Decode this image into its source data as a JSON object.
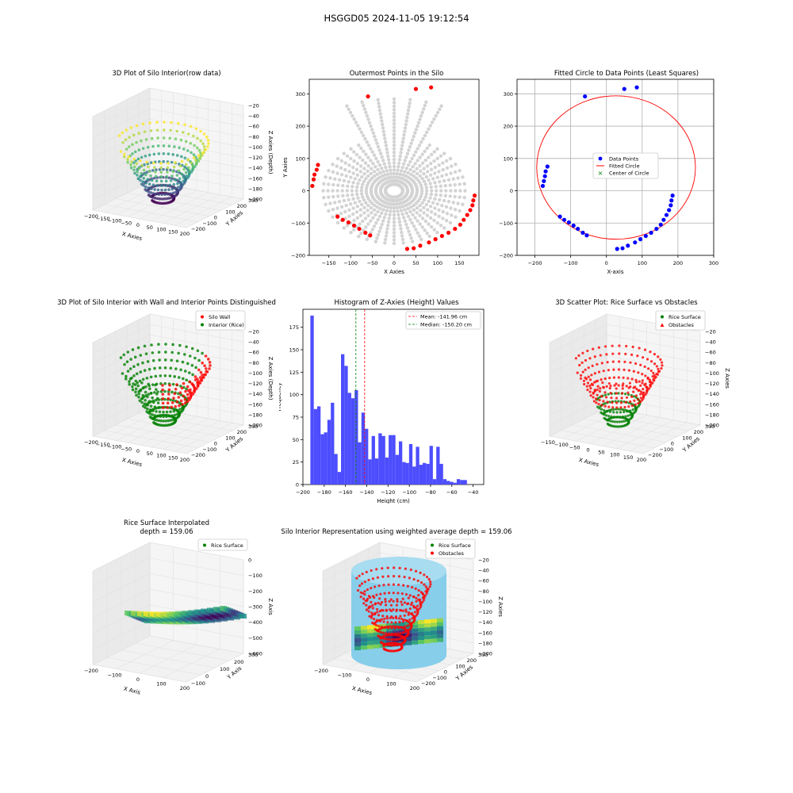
{
  "suptitle": "HSGGD05 2024-11-05 19:12:54",
  "colors": {
    "wall": "#ff0000",
    "rice": "#008000",
    "grey": "#d3d3d3",
    "blue": "#0000ff",
    "hist": "#4d4dff",
    "silo": "#87ceeb"
  },
  "chart_data": [
    {
      "type": "scatter",
      "title": "3D Plot of Silo Interior(row data)",
      "xlabel": "X Axies",
      "ylabel": "Y Axies",
      "zlabel": "Z Axies (Depth)",
      "xticks": [
        "−200",
        "−150",
        "−100",
        "−50",
        "0",
        "50",
        "100",
        "150",
        "200"
      ],
      "yticks": [
        "300",
        "200",
        "100",
        "0",
        "−100",
        "−200"
      ],
      "zticks": [
        "−20",
        "−40",
        "−60",
        "−80",
        "−100",
        "−120",
        "−140",
        "−160",
        "−180",
        "−200"
      ],
      "colormap": "viridis"
    },
    {
      "type": "scatter",
      "title": "Outermost Points in the Silo",
      "xlabel": "X Axies",
      "ylabel": "Y Axies",
      "xlim": [
        -195,
        195
      ],
      "ylim": [
        -200,
        345
      ],
      "xticks": [
        -150,
        -100,
        -50,
        0,
        50,
        100,
        150
      ],
      "yticks": [
        -200,
        -100,
        0,
        100,
        200,
        300
      ],
      "outer_points": [
        [
          -60,
          292
        ],
        [
          50,
          315
        ],
        [
          85,
          320
        ],
        [
          -175,
          80
        ],
        [
          -178,
          65
        ],
        [
          -183,
          50
        ],
        [
          -185,
          35
        ],
        [
          -188,
          15
        ],
        [
          -130,
          -80
        ],
        [
          -118,
          -90
        ],
        [
          -105,
          -98
        ],
        [
          -92,
          -108
        ],
        [
          -80,
          -118
        ],
        [
          -66,
          -130
        ],
        [
          -55,
          -138
        ],
        [
          30,
          -180
        ],
        [
          45,
          -178
        ],
        [
          60,
          -170
        ],
        [
          80,
          -160
        ],
        [
          95,
          -150
        ],
        [
          110,
          -140
        ],
        [
          125,
          -130
        ],
        [
          140,
          -118
        ],
        [
          152,
          -105
        ],
        [
          160,
          -90
        ],
        [
          168,
          -75
        ],
        [
          175,
          -60
        ],
        [
          180,
          -45
        ],
        [
          182,
          -30
        ],
        [
          185,
          -15
        ]
      ]
    },
    {
      "type": "scatter",
      "title": "Fitted Circle to Data Points (Least Squares)",
      "xlabel": "X-axis",
      "ylabel": "Y-axis",
      "xlim": [
        -250,
        300
      ],
      "ylim": [
        -200,
        345
      ],
      "xticks": [
        -200,
        -100,
        0,
        100,
        200,
        300
      ],
      "yticks": [
        -200,
        -100,
        0,
        100,
        200,
        300
      ],
      "legend": [
        "Data Points",
        "Fitted Circle",
        "Center of Circle"
      ],
      "circle": {
        "cx": 27,
        "cy": 72,
        "r": 222
      },
      "points": [
        [
          -60,
          292
        ],
        [
          50,
          315
        ],
        [
          85,
          320
        ],
        [
          -165,
          75
        ],
        [
          -170,
          60
        ],
        [
          -172,
          45
        ],
        [
          -175,
          30
        ],
        [
          -178,
          15
        ],
        [
          -130,
          -80
        ],
        [
          -118,
          -90
        ],
        [
          -105,
          -98
        ],
        [
          -92,
          -108
        ],
        [
          -80,
          -118
        ],
        [
          -66,
          -130
        ],
        [
          -55,
          -138
        ],
        [
          30,
          -180
        ],
        [
          45,
          -178
        ],
        [
          60,
          -170
        ],
        [
          80,
          -160
        ],
        [
          95,
          -150
        ],
        [
          110,
          -140
        ],
        [
          125,
          -130
        ],
        [
          140,
          -118
        ],
        [
          152,
          -105
        ],
        [
          160,
          -90
        ],
        [
          168,
          -75
        ],
        [
          175,
          -60
        ],
        [
          180,
          -45
        ],
        [
          182,
          -30
        ],
        [
          185,
          -15
        ]
      ]
    },
    {
      "type": "scatter",
      "title": "3D Plot of Silo Interior with Wall and Interior Points Distinguished",
      "xlabel": "X Axies",
      "ylabel": "Y Axies",
      "zlabel": "Z Axies (Depth)",
      "xticks": [
        "−200",
        "−150",
        "−100",
        "−50",
        "0",
        "50",
        "100",
        "150",
        "200"
      ],
      "yticks": [
        "300",
        "200",
        "100",
        "0",
        "−100",
        "−200"
      ],
      "zticks": [
        "−20",
        "−40",
        "−60",
        "−80",
        "−100",
        "−120",
        "−140",
        "−160",
        "−180",
        "−200"
      ],
      "legend": [
        "Silo Wall",
        "Interior (Rice)"
      ]
    },
    {
      "type": "bar",
      "title": "Histogram of Z-Axies (Height) Values",
      "xlabel": "Height (cm)",
      "ylabel": "Frequency",
      "xlim": [
        -200,
        -30
      ],
      "ylim": [
        0,
        195
      ],
      "xticks": [
        -200,
        -180,
        -160,
        -140,
        -120,
        -100,
        -80,
        -60,
        -40
      ],
      "yticks": [
        0,
        25,
        50,
        75,
        100,
        125,
        150,
        175
      ],
      "bin_start": -193,
      "bin_width": 3.2,
      "values": [
        188,
        84,
        87,
        56,
        58,
        72,
        91,
        34,
        14,
        145,
        132,
        102,
        96,
        105,
        47,
        80,
        62,
        28,
        54,
        29,
        57,
        54,
        30,
        55,
        55,
        33,
        48,
        25,
        24,
        45,
        20,
        42,
        22,
        24,
        23,
        43,
        6,
        42,
        23,
        6,
        4,
        3,
        2,
        6,
        5,
        5
      ],
      "mean": -141.96,
      "median": -150.2,
      "legend": [
        "Mean: -141.96 cm",
        "Median: -150.20 cm"
      ]
    },
    {
      "type": "scatter",
      "title": "3D Scatter Plot: Rice Surface vs Obstacles",
      "xticks": [
        "−150",
        "−100",
        "−50",
        "0",
        "50",
        "100",
        "150",
        "200"
      ],
      "yticks": [
        "300",
        "200",
        "100",
        "0",
        "−100",
        "−200"
      ],
      "zticks": [
        "−20",
        "−40",
        "−60",
        "−80",
        "−100",
        "−120",
        "−140",
        "−160",
        "−180",
        "−200"
      ],
      "xlabel": "X Axies",
      "ylabel": "Y Axies",
      "zlabel": "Z Axies",
      "legend": [
        "Rice Surface",
        "Obstacles"
      ]
    },
    {
      "type": "scatter",
      "title_line1": "Rice Surface Interpolated",
      "title_line2": "depth = 159.06",
      "xlabel": "X Axis",
      "ylabel": "Y Axis",
      "zlabel": "Z Axis",
      "xticks": [
        "−200",
        "−100",
        "0",
        "100",
        "200"
      ],
      "yticks": [
        "300",
        "200",
        "100",
        "0",
        "−100"
      ],
      "zticks": [
        "0",
        "−100",
        "−200",
        "−300",
        "−400",
        "−500",
        "−600"
      ],
      "legend": [
        "Rice Surface"
      ]
    },
    {
      "type": "scatter",
      "title": "Silo Interior Representation using weighted average depth = 159.06",
      "xlabel": "X Axies",
      "ylabel": "Y Axies",
      "zlabel": "Z Axies",
      "xticks": [
        "−200",
        "−100",
        "0",
        "100",
        "200"
      ],
      "yticks": [
        "300",
        "200",
        "100",
        "0",
        "−100",
        "−200"
      ],
      "zticks": [
        "−20",
        "−40",
        "−60",
        "−80",
        "−100",
        "−120",
        "−140",
        "−160",
        "−180",
        "−200"
      ],
      "legend": [
        "Rice Surface",
        "Obstacles"
      ]
    }
  ]
}
